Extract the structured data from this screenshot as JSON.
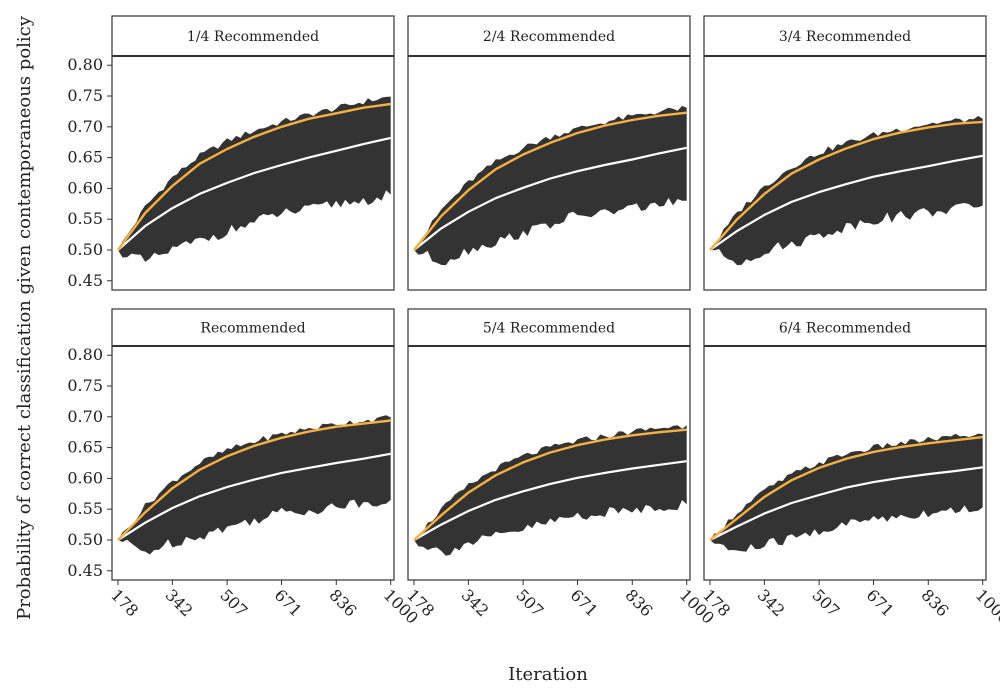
{
  "chart_data": {
    "type": "area",
    "xlabel": "Iteration",
    "ylabel": "Probability of correct classification given contemporaneous policy",
    "x_ticks": [
      178,
      342,
      507,
      671,
      836,
      1000
    ],
    "x_tick_labels": [
      "178",
      "342",
      "507",
      "671",
      "836",
      "1000"
    ],
    "y_ticks": [
      0.45,
      0.5,
      0.55,
      0.6,
      0.65,
      0.7,
      0.75,
      0.8
    ],
    "y_tick_labels": [
      "0.45",
      "0.50",
      "0.55",
      "0.60",
      "0.65",
      "0.70",
      "0.75",
      "0.80"
    ],
    "xlim": [
      160,
      1010
    ],
    "ylim": [
      0.435,
      0.815
    ],
    "colors": {
      "band": "#333333",
      "series_orange": "#f5b041",
      "series_white": "#ffffff",
      "panel_border": "#333333"
    },
    "x": [
      178,
      260,
      342,
      424,
      507,
      589,
      671,
      753,
      836,
      918,
      1000
    ],
    "panels": [
      {
        "title": "1/4 Recommended",
        "orange": [
          0.5,
          0.56,
          0.604,
          0.64,
          0.664,
          0.684,
          0.7,
          0.713,
          0.722,
          0.731,
          0.737
        ],
        "white": [
          0.5,
          0.539,
          0.568,
          0.591,
          0.609,
          0.625,
          0.638,
          0.65,
          0.661,
          0.672,
          0.682
        ],
        "upper": [
          0.5,
          0.57,
          0.618,
          0.653,
          0.677,
          0.694,
          0.708,
          0.72,
          0.73,
          0.741,
          0.749
        ],
        "lower": [
          0.5,
          0.48,
          0.5,
          0.515,
          0.53,
          0.545,
          0.56,
          0.565,
          0.575,
          0.58,
          0.59
        ]
      },
      {
        "title": "2/4 Recommended",
        "orange": [
          0.5,
          0.555,
          0.597,
          0.631,
          0.655,
          0.674,
          0.69,
          0.702,
          0.711,
          0.718,
          0.723
        ],
        "white": [
          0.5,
          0.535,
          0.562,
          0.584,
          0.601,
          0.616,
          0.628,
          0.638,
          0.647,
          0.657,
          0.666
        ],
        "upper": [
          0.5,
          0.565,
          0.61,
          0.643,
          0.666,
          0.684,
          0.697,
          0.708,
          0.717,
          0.725,
          0.731
        ],
        "lower": [
          0.5,
          0.48,
          0.5,
          0.513,
          0.528,
          0.542,
          0.556,
          0.56,
          0.568,
          0.574,
          0.58
        ]
      },
      {
        "title": "3/4 Recommended",
        "orange": [
          0.5,
          0.55,
          0.591,
          0.624,
          0.647,
          0.665,
          0.68,
          0.691,
          0.699,
          0.705,
          0.708
        ],
        "white": [
          0.5,
          0.531,
          0.557,
          0.578,
          0.594,
          0.607,
          0.619,
          0.628,
          0.636,
          0.645,
          0.653
        ],
        "upper": [
          0.5,
          0.56,
          0.603,
          0.635,
          0.658,
          0.674,
          0.687,
          0.697,
          0.705,
          0.71,
          0.713
        ],
        "lower": [
          0.5,
          0.48,
          0.498,
          0.51,
          0.524,
          0.538,
          0.55,
          0.555,
          0.562,
          0.567,
          0.572
        ]
      },
      {
        "title": "Recommended",
        "orange": [
          0.5,
          0.545,
          0.584,
          0.614,
          0.636,
          0.653,
          0.666,
          0.676,
          0.684,
          0.689,
          0.694
        ],
        "white": [
          0.5,
          0.528,
          0.552,
          0.571,
          0.586,
          0.598,
          0.609,
          0.617,
          0.625,
          0.632,
          0.64
        ],
        "upper": [
          0.5,
          0.555,
          0.595,
          0.625,
          0.646,
          0.66,
          0.672,
          0.681,
          0.689,
          0.694,
          0.699
        ],
        "lower": [
          0.5,
          0.48,
          0.496,
          0.507,
          0.52,
          0.533,
          0.545,
          0.548,
          0.555,
          0.56,
          0.565
        ]
      },
      {
        "title": "5/4 Recommended",
        "orange": [
          0.5,
          0.54,
          0.577,
          0.605,
          0.626,
          0.642,
          0.654,
          0.663,
          0.67,
          0.675,
          0.679
        ],
        "white": [
          0.5,
          0.525,
          0.547,
          0.565,
          0.579,
          0.591,
          0.601,
          0.609,
          0.616,
          0.622,
          0.628
        ],
        "upper": [
          0.5,
          0.55,
          0.588,
          0.616,
          0.636,
          0.65,
          0.661,
          0.669,
          0.676,
          0.682,
          0.686
        ],
        "lower": [
          0.5,
          0.48,
          0.494,
          0.505,
          0.517,
          0.529,
          0.54,
          0.543,
          0.55,
          0.554,
          0.558
        ]
      },
      {
        "title": "6/4 Recommended",
        "orange": [
          0.5,
          0.535,
          0.57,
          0.597,
          0.617,
          0.632,
          0.643,
          0.651,
          0.657,
          0.662,
          0.667
        ],
        "white": [
          0.5,
          0.522,
          0.543,
          0.56,
          0.573,
          0.585,
          0.594,
          0.601,
          0.607,
          0.612,
          0.618
        ],
        "upper": [
          0.5,
          0.545,
          0.58,
          0.606,
          0.625,
          0.64,
          0.65,
          0.657,
          0.663,
          0.668,
          0.672
        ],
        "lower": [
          0.5,
          0.48,
          0.492,
          0.502,
          0.514,
          0.525,
          0.535,
          0.538,
          0.545,
          0.549,
          0.553
        ]
      }
    ]
  }
}
